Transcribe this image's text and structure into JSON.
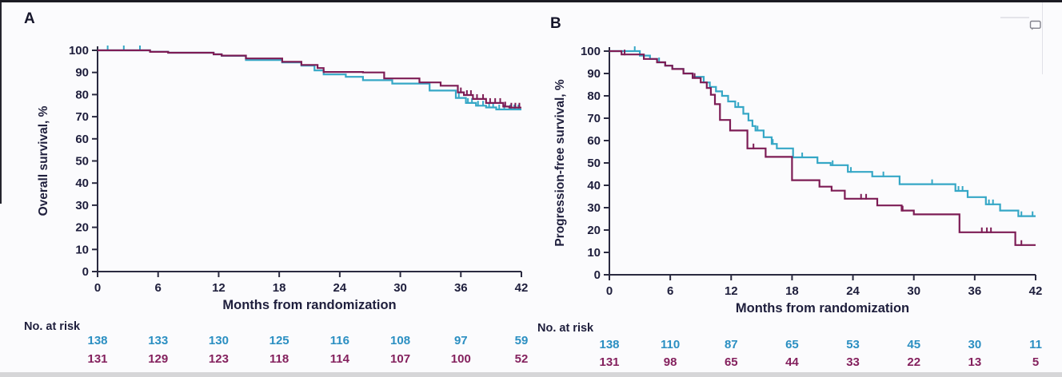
{
  "figure": {
    "background": "#fbfbfd",
    "frame_color": "#1b1b23",
    "axis_color": "#2a2a40",
    "text_color": "#1e1e3c",
    "bottom_bar_color": "#d6d6d8",
    "comment_icon": "speech-bubble-icon"
  },
  "chart_data": [
    {
      "type": "line",
      "subtype": "kaplan-meier-step-curves-with-censor-ticks",
      "panel_label": "A",
      "xlabel": "Months from randomization",
      "ylabel": "Overall survival, %",
      "xlim": [
        0,
        42
      ],
      "ylim": [
        0,
        100
      ],
      "x_ticks": [
        0,
        6,
        12,
        18,
        24,
        30,
        36,
        42
      ],
      "y_ticks": [
        0,
        10,
        20,
        30,
        40,
        50,
        60,
        70,
        80,
        90,
        100
      ],
      "grid": false,
      "legend": "none",
      "series": [
        {
          "name": "series-1-cyan",
          "color": "#35a7c6",
          "steps": [
            [
              0,
              100
            ],
            [
              5.2,
              99.3
            ],
            [
              7,
              98.9
            ],
            [
              11.5,
              98.2
            ],
            [
              12.3,
              97.5
            ],
            [
              14.7,
              95.6
            ],
            [
              18.3,
              94.5
            ],
            [
              20.2,
              93.1
            ],
            [
              21.5,
              90.9
            ],
            [
              22.4,
              89.1
            ],
            [
              24.6,
              88
            ],
            [
              26.3,
              86.5
            ],
            [
              29.2,
              85
            ],
            [
              32.9,
              81.8
            ],
            [
              35.5,
              78.5
            ],
            [
              36.5,
              76.2
            ],
            [
              37.5,
              75
            ],
            [
              38.5,
              74.2
            ],
            [
              39.5,
              73.3
            ],
            [
              42,
              73.3
            ]
          ],
          "censor_marks": [
            [
              1,
              100
            ],
            [
              2.6,
              100
            ],
            [
              4.2,
              100
            ],
            [
              35.8,
              78.5
            ],
            [
              36.7,
              76.2
            ],
            [
              37.1,
              76.2
            ],
            [
              37.7,
              75
            ],
            [
              38.2,
              75
            ],
            [
              38.8,
              74.2
            ],
            [
              39.2,
              74.2
            ],
            [
              39.8,
              73.3
            ],
            [
              40.3,
              73.3
            ],
            [
              40.9,
              73.3
            ],
            [
              41.3,
              73.3
            ],
            [
              41.7,
              73.3
            ]
          ]
        },
        {
          "name": "series-2-maroon",
          "color": "#7d1c55",
          "steps": [
            [
              0,
              100
            ],
            [
              5.2,
              99.3
            ],
            [
              7,
              98.9
            ],
            [
              11.5,
              98.2
            ],
            [
              12.3,
              97.6
            ],
            [
              14.7,
              96.3
            ],
            [
              18.3,
              94.8
            ],
            [
              20.2,
              93.4
            ],
            [
              21.8,
              92
            ],
            [
              22.4,
              90.2
            ],
            [
              26.3,
              90
            ],
            [
              28.4,
              87.3
            ],
            [
              31.9,
              85.5
            ],
            [
              34,
              84
            ],
            [
              35.7,
              81
            ],
            [
              36.3,
              79.8
            ],
            [
              37.2,
              78
            ],
            [
              38.5,
              76.2
            ],
            [
              40.2,
              74.6
            ],
            [
              40.8,
              74.1
            ],
            [
              42,
              74.1
            ]
          ],
          "censor_marks": [
            [
              36,
              81
            ],
            [
              36.6,
              79.8
            ],
            [
              37,
              79.8
            ],
            [
              37.6,
              78
            ],
            [
              38.2,
              78
            ],
            [
              38.9,
              76.2
            ],
            [
              39.4,
              76.2
            ],
            [
              39.9,
              76.2
            ],
            [
              40.4,
              74.6
            ],
            [
              41,
              74.1
            ],
            [
              41.4,
              74.1
            ],
            [
              41.8,
              74.1
            ]
          ]
        }
      ],
      "risk_table": {
        "label": "No. at risk",
        "months": [
          0,
          6,
          12,
          18,
          24,
          30,
          36,
          42
        ],
        "rows": [
          {
            "series": "series-1-cyan",
            "color": "#2b8fc2",
            "values": [
              "138",
              "133",
              "130",
              "125",
              "116",
              "108",
              "97",
              "59"
            ]
          },
          {
            "series": "series-2-maroon",
            "color": "#84215e",
            "values": [
              "131",
              "129",
              "123",
              "118",
              "114",
              "107",
              "100",
              "52"
            ]
          }
        ]
      }
    },
    {
      "type": "line",
      "subtype": "kaplan-meier-step-curves-with-censor-ticks",
      "panel_label": "B",
      "xlabel": "Months from randomization",
      "ylabel": "Progression-free survival, %",
      "xlim": [
        0,
        42
      ],
      "ylim": [
        0,
        100
      ],
      "x_ticks": [
        0,
        6,
        12,
        18,
        24,
        30,
        36,
        42
      ],
      "y_ticks": [
        0,
        10,
        20,
        30,
        40,
        50,
        60,
        70,
        80,
        90,
        100
      ],
      "grid": false,
      "legend": "none",
      "series": [
        {
          "name": "series-1-cyan",
          "color": "#35a7c6",
          "steps": [
            [
              0,
              100
            ],
            [
              3,
              98
            ],
            [
              4,
              96.5
            ],
            [
              4.7,
              95
            ],
            [
              5.5,
              93.5
            ],
            [
              6.2,
              92
            ],
            [
              7.3,
              90
            ],
            [
              8.2,
              88.5
            ],
            [
              9.3,
              86
            ],
            [
              9.9,
              84
            ],
            [
              10.5,
              82
            ],
            [
              11.1,
              80
            ],
            [
              11.7,
              77.5
            ],
            [
              12.4,
              75
            ],
            [
              13.2,
              72
            ],
            [
              13.7,
              69
            ],
            [
              14.1,
              66.5
            ],
            [
              14.4,
              64.5
            ],
            [
              15.2,
              61.5
            ],
            [
              16,
              58.5
            ],
            [
              16.5,
              56.5
            ],
            [
              18.1,
              52.5
            ],
            [
              20.5,
              50
            ],
            [
              21.8,
              49
            ],
            [
              23.5,
              46
            ],
            [
              25.9,
              44
            ],
            [
              28.6,
              40.5
            ],
            [
              34.1,
              37.5
            ],
            [
              35.3,
              34.7
            ],
            [
              37.1,
              31.5
            ],
            [
              38.5,
              28.7
            ],
            [
              40.3,
              26.2
            ],
            [
              42,
              26.2
            ]
          ],
          "censor_marks": [
            [
              2.5,
              100
            ],
            [
              4.9,
              95
            ],
            [
              12.7,
              75
            ],
            [
              14.6,
              64.5
            ],
            [
              16.1,
              58.5
            ],
            [
              19,
              52.5
            ],
            [
              22,
              49
            ],
            [
              23.8,
              46
            ],
            [
              27,
              44
            ],
            [
              31.8,
              40.5
            ],
            [
              34.4,
              37.5
            ],
            [
              34.8,
              37.5
            ],
            [
              37.4,
              31.5
            ],
            [
              37.8,
              31.5
            ],
            [
              40.6,
              26.2
            ],
            [
              41.7,
              26.2
            ]
          ]
        },
        {
          "name": "series-2-maroon",
          "color": "#7d1c55",
          "steps": [
            [
              0,
              100
            ],
            [
              1.2,
              98.5
            ],
            [
              3.4,
              96.5
            ],
            [
              4.7,
              95
            ],
            [
              5.5,
              93.5
            ],
            [
              6.2,
              92
            ],
            [
              7.3,
              90
            ],
            [
              8.2,
              88
            ],
            [
              9,
              86
            ],
            [
              9.6,
              83.5
            ],
            [
              10,
              80.5
            ],
            [
              10.4,
              76.3
            ],
            [
              10.9,
              69.2
            ],
            [
              11.9,
              64.5
            ],
            [
              13.6,
              56.5
            ],
            [
              15.4,
              52.7
            ],
            [
              18,
              42.3
            ],
            [
              20.7,
              39.4
            ],
            [
              21.9,
              37.6
            ],
            [
              23.2,
              34
            ],
            [
              26.4,
              31
            ],
            [
              28.8,
              28.7
            ],
            [
              30,
              27
            ],
            [
              34.5,
              19
            ],
            [
              40,
              13.3
            ],
            [
              42,
              13.3
            ]
          ],
          "censor_marks": [
            [
              1.5,
              98.5
            ],
            [
              8.4,
              88
            ],
            [
              14.2,
              56.5
            ],
            [
              24.8,
              34
            ],
            [
              25.3,
              34
            ],
            [
              28.9,
              28.7
            ],
            [
              36.7,
              19
            ],
            [
              37.2,
              19
            ],
            [
              37.6,
              19
            ],
            [
              40.6,
              13.3
            ]
          ]
        }
      ],
      "risk_table": {
        "label": "No. at risk",
        "months": [
          0,
          6,
          12,
          18,
          24,
          30,
          36,
          42
        ],
        "rows": [
          {
            "series": "series-1-cyan",
            "color": "#2b8fc2",
            "values": [
              "138",
              "110",
              "87",
              "65",
              "53",
              "45",
              "30",
              "11"
            ]
          },
          {
            "series": "series-2-maroon",
            "color": "#84215e",
            "values": [
              "131",
              "98",
              "65",
              "44",
              "33",
              "22",
              "13",
              "5"
            ]
          }
        ]
      }
    }
  ]
}
